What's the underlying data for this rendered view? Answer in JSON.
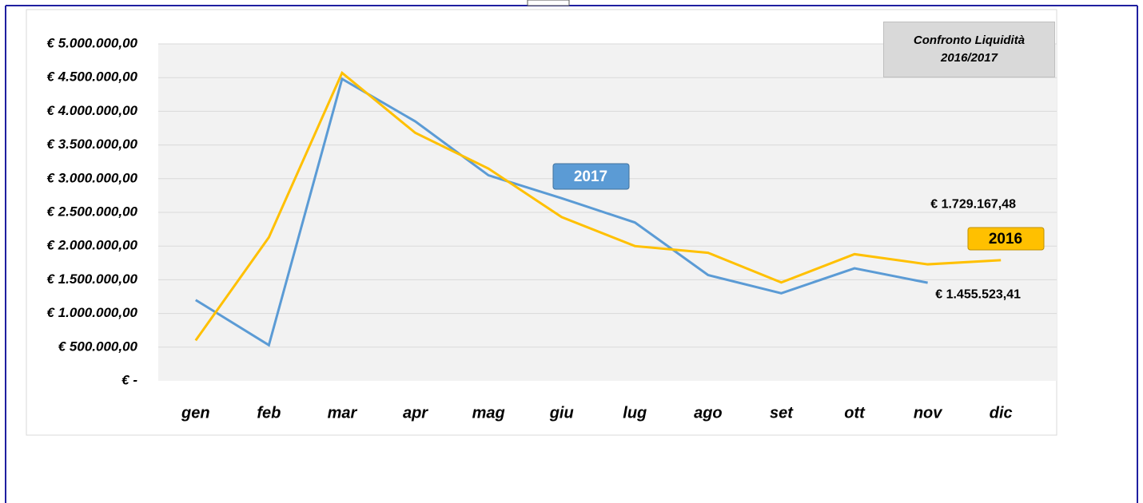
{
  "chart_data": {
    "type": "line",
    "title": "Confronto Liquidità 2016/2017",
    "categories": [
      "gen",
      "feb",
      "mar",
      "apr",
      "mag",
      "giu",
      "lug",
      "ago",
      "set",
      "ott",
      "nov",
      "dic"
    ],
    "series": [
      {
        "name": "2017",
        "color": "#5b9bd5",
        "values": [
          1200000,
          530000,
          4480000,
          3850000,
          3050000,
          2710000,
          2350000,
          1570000,
          1300000,
          1670000,
          1455523.41,
          null
        ],
        "value_labels": [
          null,
          null,
          null,
          null,
          null,
          null,
          null,
          null,
          null,
          null,
          "€ 1.455.523,41",
          null
        ]
      },
      {
        "name": "2016",
        "color": "#ffc000",
        "values": [
          600000,
          2130000,
          4570000,
          3680000,
          3150000,
          2430000,
          2000000,
          1900000,
          1460000,
          1880000,
          1729167.48,
          1790000
        ],
        "value_labels": [
          null,
          null,
          null,
          null,
          null,
          null,
          null,
          null,
          null,
          null,
          "€ 1.729.167,48",
          null
        ]
      }
    ],
    "ylim": [
      0,
      5000000
    ],
    "yticks": [
      {
        "value": 0,
        "label": "€ -"
      },
      {
        "value": 500000,
        "label": "€ 500.000,00"
      },
      {
        "value": 1000000,
        "label": "€ 1.000.000,00"
      },
      {
        "value": 1500000,
        "label": "€ 1.500.000,00"
      },
      {
        "value": 2000000,
        "label": "€ 2.000.000,00"
      },
      {
        "value": 2500000,
        "label": "€ 2.500.000,00"
      },
      {
        "value": 3000000,
        "label": "€ 3.000.000,00"
      },
      {
        "value": 3500000,
        "label": "€ 3.500.000,00"
      },
      {
        "value": 4000000,
        "label": "€ 4.000.000,00"
      },
      {
        "value": 4500000,
        "label": "€ 4.500.000,00"
      },
      {
        "value": 5000000,
        "label": "€ 5.000.000,00"
      }
    ],
    "grid": true
  }
}
